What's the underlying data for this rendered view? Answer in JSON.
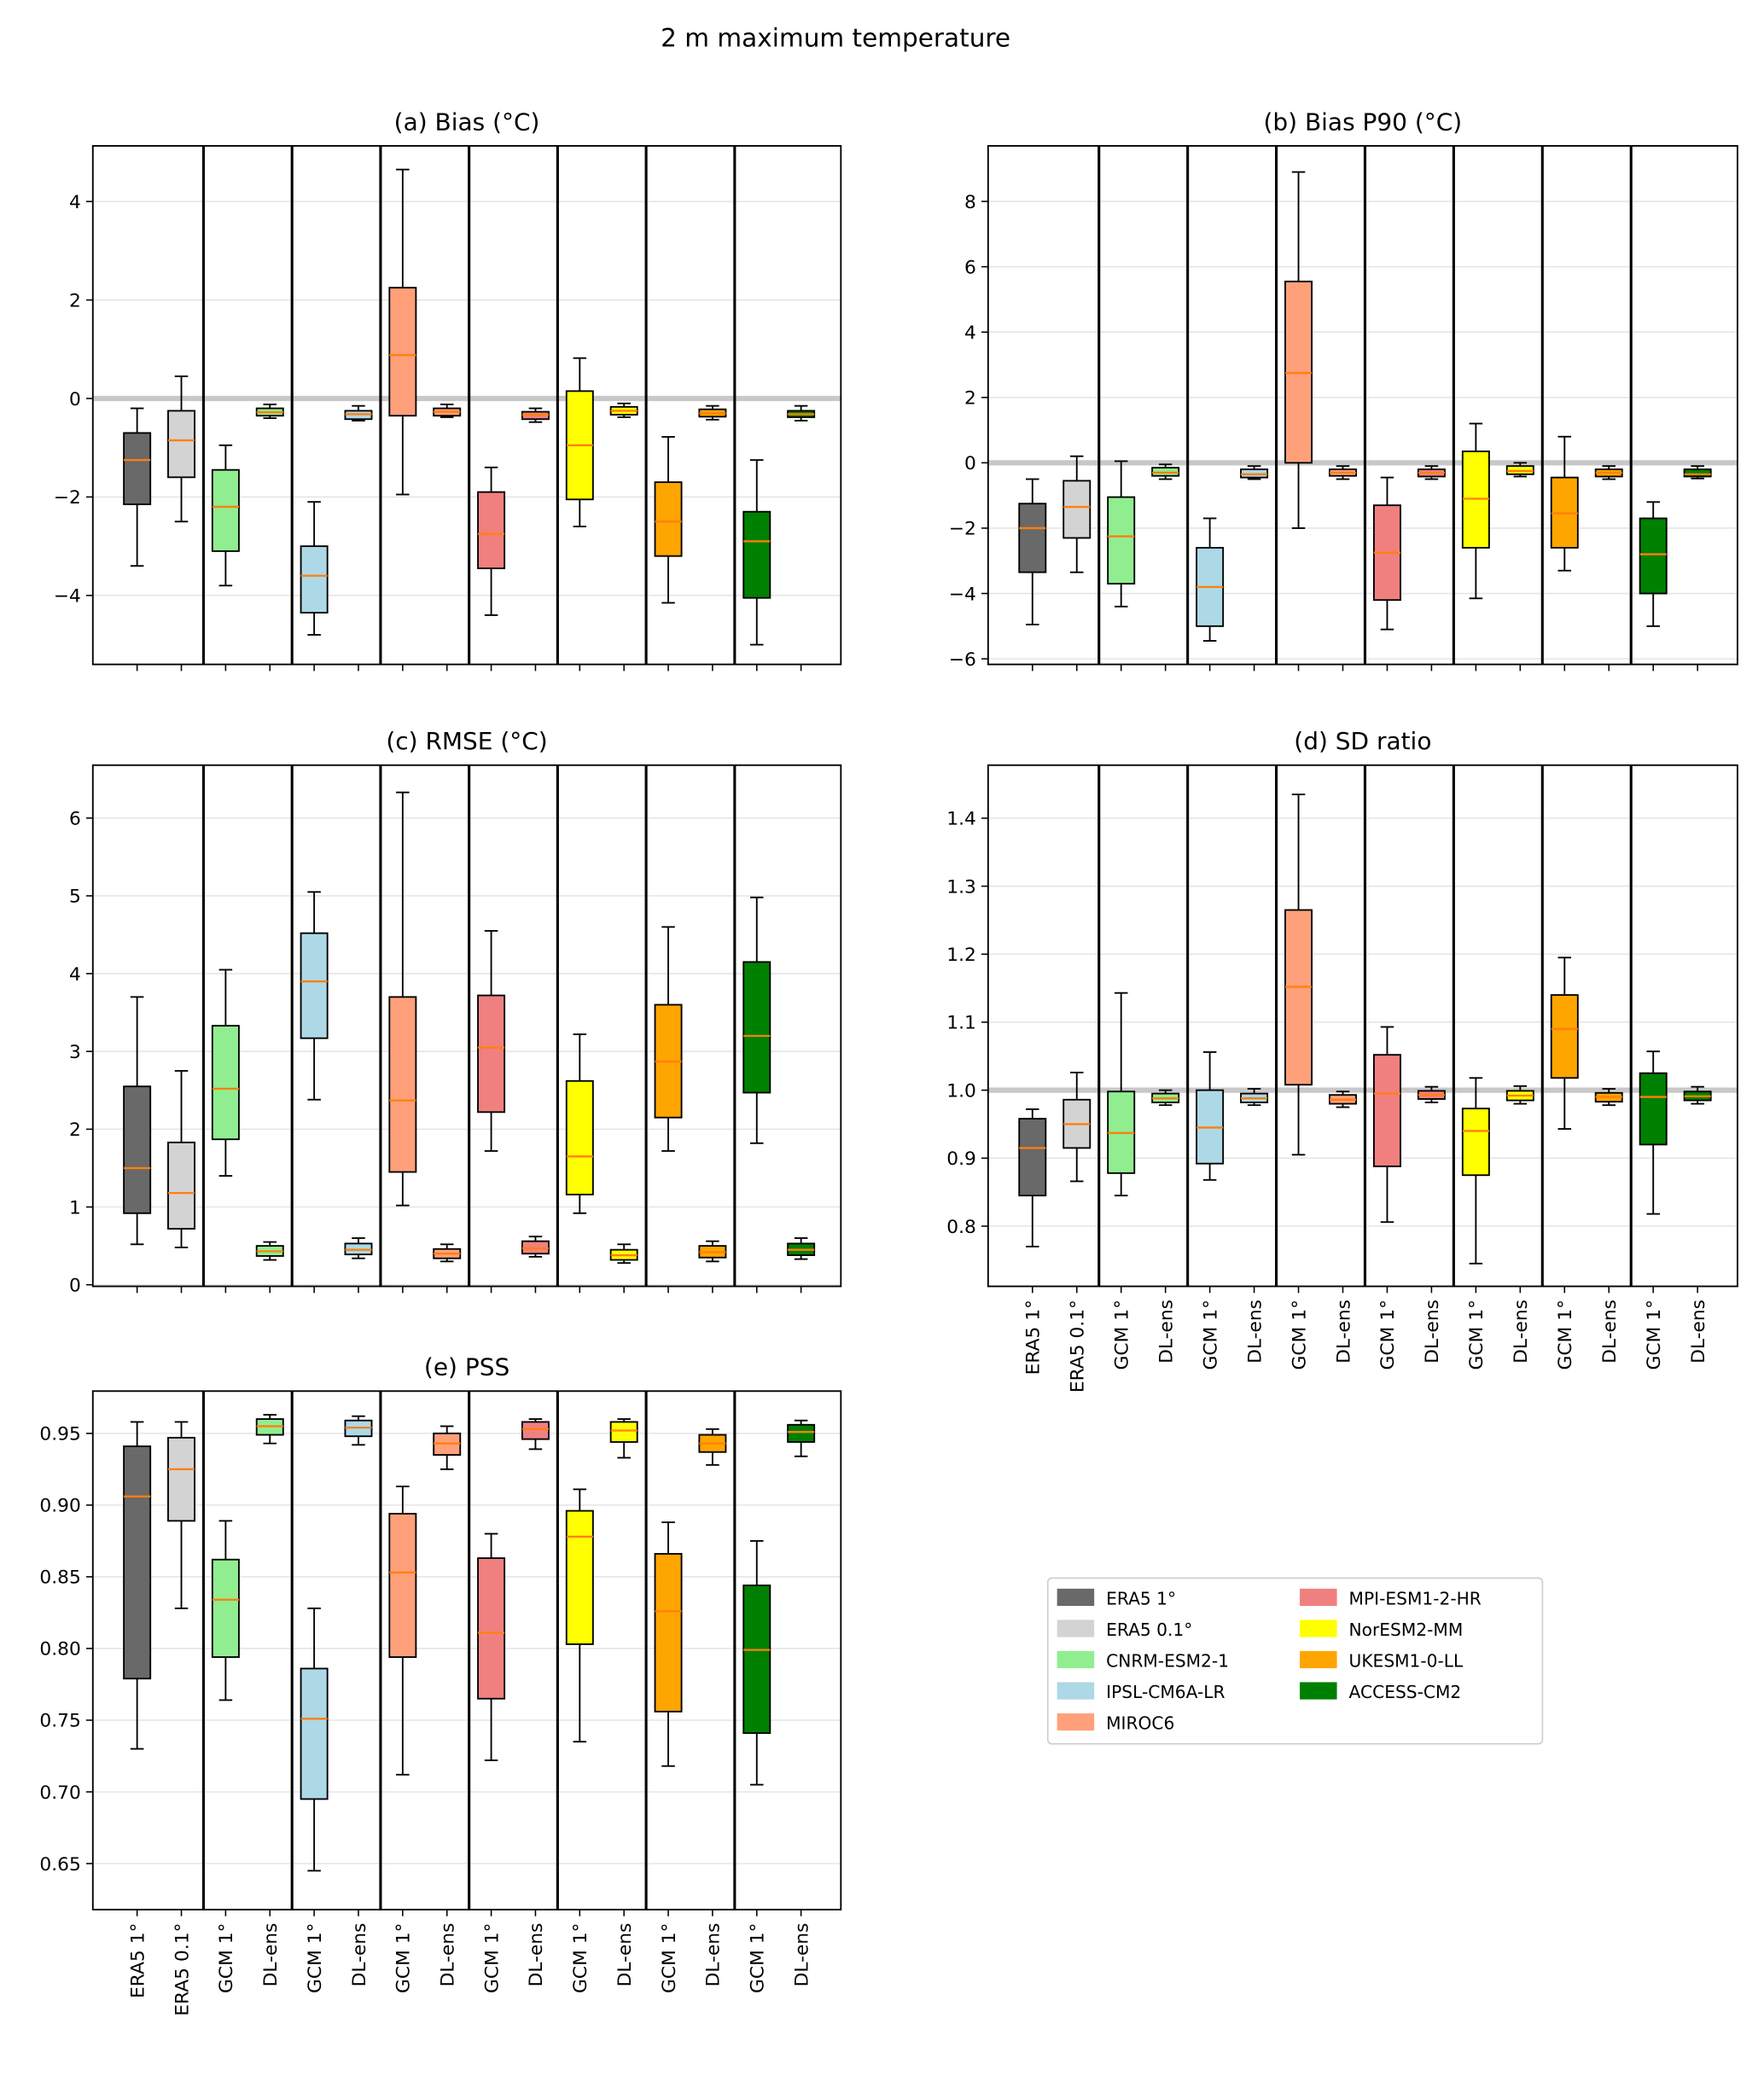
{
  "chart_data": {
    "type": "box",
    "title": "2 m maximum temperature",
    "categories": [
      "ERA5 1°",
      "ERA5 0.1°",
      "GCM 1°",
      "DL-ens",
      "GCM 1°",
      "DL-ens",
      "GCM 1°",
      "DL-ens",
      "GCM 1°",
      "DL-ens",
      "GCM 1°",
      "DL-ens",
      "GCM 1°",
      "DL-ens",
      "GCM 1°",
      "DL-ens"
    ],
    "legend": [
      {
        "name": "ERA5 1°",
        "color": "#696969"
      },
      {
        "name": "ERA5 0.1°",
        "color": "#d3d3d3"
      },
      {
        "name": "CNRM-ESM2-1",
        "color": "#90ee90"
      },
      {
        "name": "IPSL-CM6A-LR",
        "color": "#add8e6"
      },
      {
        "name": "MIROC6",
        "color": "#ffa07a"
      },
      {
        "name": "MPI-ESM1-2-HR",
        "color": "#f08080"
      },
      {
        "name": "NorESM2-MM",
        "color": "#ffff00"
      },
      {
        "name": "UKESM1-0-LL",
        "color": "#ffa500"
      },
      {
        "name": "ACCESS-CM2",
        "color": "#008000"
      }
    ],
    "median_color": "#ff7f0e",
    "box_stats_order": [
      "whislo",
      "q1",
      "median",
      "q3",
      "whishi"
    ],
    "panels": [
      {
        "id": "a",
        "title": "(a) Bias (°C)",
        "ylim": [
          -5.4,
          5.13
        ],
        "ticks": [
          -4,
          -2,
          0,
          2,
          4
        ],
        "tick_labels": [
          "−4",
          "−2",
          "0",
          "2",
          "4"
        ],
        "refline": 0,
        "show_xlabels": false,
        "boxes": [
          [
            -3.4,
            -2.15,
            -1.25,
            -0.7,
            -0.2
          ],
          [
            -2.5,
            -1.6,
            -0.85,
            -0.25,
            0.45
          ],
          [
            -3.8,
            -3.1,
            -2.2,
            -1.45,
            -0.95
          ],
          [
            -0.4,
            -0.35,
            -0.28,
            -0.2,
            -0.12
          ],
          [
            -4.8,
            -4.35,
            -3.6,
            -3.0,
            -2.1
          ],
          [
            -0.45,
            -0.42,
            -0.32,
            -0.25,
            -0.15
          ],
          [
            -1.95,
            -0.35,
            0.88,
            2.25,
            4.65
          ],
          [
            -0.38,
            -0.35,
            -0.27,
            -0.2,
            -0.12
          ],
          [
            -4.4,
            -3.45,
            -2.75,
            -1.9,
            -1.4
          ],
          [
            -0.48,
            -0.42,
            -0.33,
            -0.27,
            -0.2
          ],
          [
            -2.6,
            -2.05,
            -0.95,
            0.15,
            0.82
          ],
          [
            -0.38,
            -0.33,
            -0.25,
            -0.17,
            -0.1
          ],
          [
            -4.15,
            -3.2,
            -2.5,
            -1.7,
            -0.78
          ],
          [
            -0.43,
            -0.37,
            -0.3,
            -0.22,
            -0.15
          ],
          [
            -5.0,
            -4.05,
            -2.9,
            -2.3,
            -1.25
          ],
          [
            -0.45,
            -0.38,
            -0.32,
            -0.25,
            -0.15
          ]
        ]
      },
      {
        "id": "b",
        "title": "(b) Bias P90 (°C)",
        "ylim": [
          -6.17,
          9.7
        ],
        "ticks": [
          -6,
          -4,
          -2,
          0,
          2,
          4,
          6,
          8
        ],
        "tick_labels": [
          "−6",
          "−4",
          "−2",
          "0",
          "2",
          "4",
          "6",
          "8"
        ],
        "refline": 0,
        "show_xlabels": false,
        "boxes": [
          [
            -4.95,
            -3.35,
            -2.0,
            -1.25,
            -0.5
          ],
          [
            -3.35,
            -2.3,
            -1.35,
            -0.55,
            0.2
          ],
          [
            -4.4,
            -3.7,
            -2.25,
            -1.05,
            0.05
          ],
          [
            -0.5,
            -0.4,
            -0.3,
            -0.15,
            -0.05
          ],
          [
            -5.45,
            -5.0,
            -3.8,
            -2.6,
            -1.7
          ],
          [
            -0.5,
            -0.45,
            -0.35,
            -0.2,
            -0.1
          ],
          [
            -2.0,
            0.0,
            2.75,
            5.55,
            8.9
          ],
          [
            -0.5,
            -0.4,
            -0.3,
            -0.2,
            -0.1
          ],
          [
            -5.1,
            -4.2,
            -2.75,
            -1.3,
            -0.45
          ],
          [
            -0.5,
            -0.42,
            -0.3,
            -0.2,
            -0.1
          ],
          [
            -4.15,
            -2.6,
            -1.1,
            0.35,
            1.2
          ],
          [
            -0.42,
            -0.35,
            -0.25,
            -0.1,
            0.0
          ],
          [
            -3.3,
            -2.6,
            -1.55,
            -0.45,
            0.8
          ],
          [
            -0.5,
            -0.42,
            -0.3,
            -0.2,
            -0.1
          ],
          [
            -5.0,
            -4.0,
            -2.8,
            -1.7,
            -1.2
          ],
          [
            -0.48,
            -0.42,
            -0.35,
            -0.2,
            -0.1
          ]
        ]
      },
      {
        "id": "c",
        "title": "(c) RMSE (°C)",
        "ylim": [
          -0.02,
          6.68
        ],
        "ticks": [
          0,
          1,
          2,
          3,
          4,
          5,
          6
        ],
        "tick_labels": [
          "0",
          "1",
          "2",
          "3",
          "4",
          "5",
          "6"
        ],
        "refline": null,
        "show_xlabels": false,
        "boxes": [
          [
            0.52,
            0.92,
            1.5,
            2.55,
            3.7
          ],
          [
            0.48,
            0.72,
            1.18,
            1.83,
            2.75
          ],
          [
            1.4,
            1.87,
            2.52,
            3.33,
            4.05
          ],
          [
            0.32,
            0.37,
            0.43,
            0.5,
            0.55
          ],
          [
            2.38,
            3.17,
            3.9,
            4.52,
            5.05
          ],
          [
            0.34,
            0.39,
            0.45,
            0.53,
            0.6
          ],
          [
            1.02,
            1.45,
            2.37,
            3.7,
            6.33
          ],
          [
            0.3,
            0.34,
            0.4,
            0.46,
            0.52
          ],
          [
            1.72,
            2.22,
            3.05,
            3.72,
            4.55
          ],
          [
            0.36,
            0.4,
            0.47,
            0.56,
            0.62
          ],
          [
            0.92,
            1.16,
            1.65,
            2.62,
            3.22
          ],
          [
            0.28,
            0.32,
            0.38,
            0.45,
            0.52
          ],
          [
            1.72,
            2.15,
            2.87,
            3.6,
            4.6
          ],
          [
            0.3,
            0.35,
            0.42,
            0.5,
            0.56
          ],
          [
            1.82,
            2.47,
            3.2,
            4.15,
            4.98
          ],
          [
            0.33,
            0.38,
            0.45,
            0.53,
            0.6
          ]
        ]
      },
      {
        "id": "d",
        "title": "(d) SD ratio",
        "ylim": [
          0.7115,
          1.478
        ],
        "ticks": [
          0.8,
          0.9,
          1.0,
          1.1,
          1.2,
          1.3,
          1.4
        ],
        "tick_labels": [
          "0.8",
          "0.9",
          "1.0",
          "1.1",
          "1.2",
          "1.3",
          "1.4"
        ],
        "refline": 1.0,
        "show_xlabels": true,
        "boxes": [
          [
            0.77,
            0.845,
            0.915,
            0.958,
            0.972
          ],
          [
            0.866,
            0.915,
            0.95,
            0.986,
            1.026
          ],
          [
            0.845,
            0.878,
            0.937,
            0.998,
            1.143
          ],
          [
            0.978,
            0.982,
            0.988,
            0.995,
            1.0
          ],
          [
            0.868,
            0.892,
            0.945,
            1.0,
            1.056
          ],
          [
            0.978,
            0.982,
            0.988,
            0.995,
            1.002
          ],
          [
            0.905,
            1.008,
            1.152,
            1.265,
            1.435
          ],
          [
            0.975,
            0.98,
            0.986,
            0.993,
            0.998
          ],
          [
            0.806,
            0.888,
            0.995,
            1.052,
            1.093
          ],
          [
            0.982,
            0.987,
            0.993,
            0.999,
            1.005
          ],
          [
            0.745,
            0.875,
            0.94,
            0.973,
            1.018
          ],
          [
            0.98,
            0.985,
            0.992,
            0.999,
            1.006
          ],
          [
            0.943,
            1.018,
            1.09,
            1.14,
            1.195
          ],
          [
            0.978,
            0.983,
            0.99,
            0.996,
            1.002
          ],
          [
            0.818,
            0.92,
            0.99,
            1.025,
            1.057
          ],
          [
            0.98,
            0.985,
            0.991,
            0.998,
            1.005
          ]
        ]
      },
      {
        "id": "e",
        "title": "(e) PSS",
        "ylim": [
          0.6179,
          0.9795
        ],
        "ticks": [
          0.65,
          0.7,
          0.75,
          0.8,
          0.85,
          0.9,
          0.95
        ],
        "tick_labels": [
          "0.65",
          "0.70",
          "0.75",
          "0.80",
          "0.85",
          "0.90",
          "0.95"
        ],
        "refline": null,
        "show_xlabels": true,
        "boxes": [
          [
            0.73,
            0.779,
            0.906,
            0.941,
            0.958
          ],
          [
            0.828,
            0.889,
            0.925,
            0.947,
            0.958
          ],
          [
            0.764,
            0.794,
            0.834,
            0.862,
            0.889
          ],
          [
            0.943,
            0.949,
            0.955,
            0.96,
            0.963
          ],
          [
            0.645,
            0.695,
            0.751,
            0.786,
            0.828
          ],
          [
            0.942,
            0.948,
            0.954,
            0.959,
            0.962
          ],
          [
            0.712,
            0.794,
            0.853,
            0.894,
            0.913
          ],
          [
            0.925,
            0.935,
            0.943,
            0.95,
            0.955
          ],
          [
            0.722,
            0.765,
            0.811,
            0.863,
            0.88
          ],
          [
            0.939,
            0.946,
            0.953,
            0.958,
            0.96
          ],
          [
            0.735,
            0.803,
            0.878,
            0.896,
            0.911
          ],
          [
            0.933,
            0.944,
            0.952,
            0.958,
            0.96
          ],
          [
            0.718,
            0.756,
            0.826,
            0.866,
            0.888
          ],
          [
            0.928,
            0.937,
            0.943,
            0.949,
            0.953
          ],
          [
            0.705,
            0.741,
            0.799,
            0.844,
            0.875
          ],
          [
            0.934,
            0.944,
            0.951,
            0.956,
            0.959
          ]
        ]
      }
    ]
  }
}
